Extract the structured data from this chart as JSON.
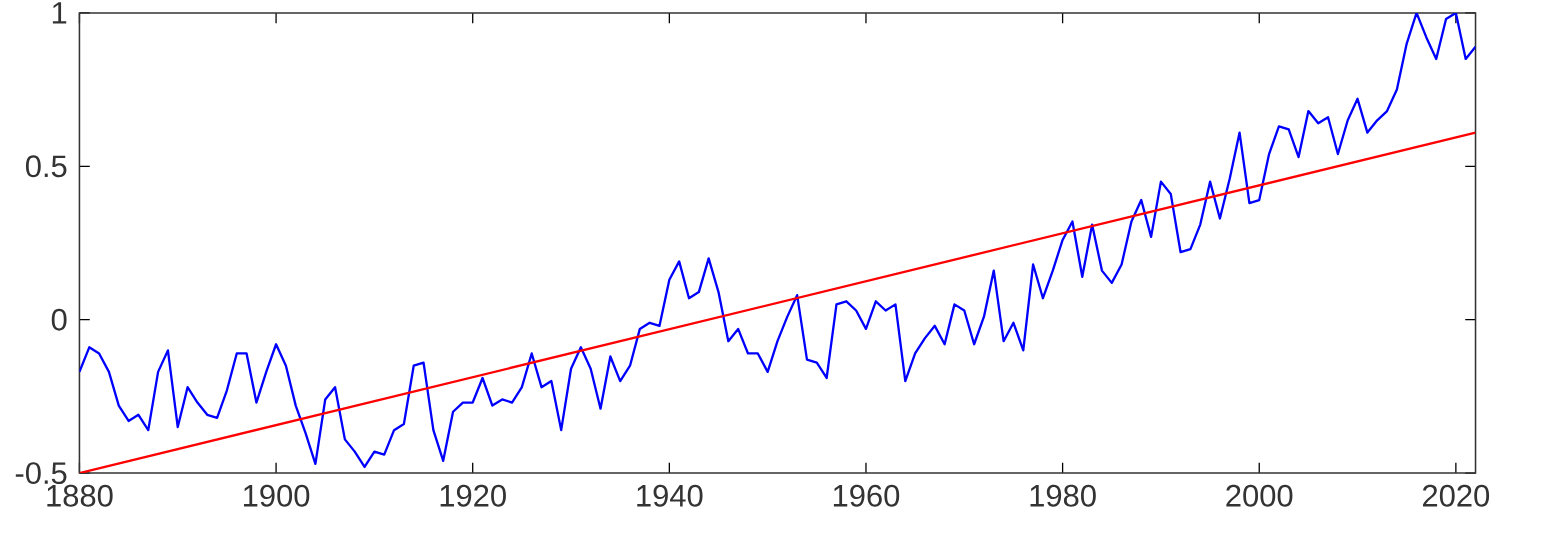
{
  "chart_data": {
    "type": "line",
    "x": [
      1880,
      1881,
      1882,
      1883,
      1884,
      1885,
      1886,
      1887,
      1888,
      1889,
      1890,
      1891,
      1892,
      1893,
      1894,
      1895,
      1896,
      1897,
      1898,
      1899,
      1900,
      1901,
      1902,
      1903,
      1904,
      1905,
      1906,
      1907,
      1908,
      1909,
      1910,
      1911,
      1912,
      1913,
      1914,
      1915,
      1916,
      1917,
      1918,
      1919,
      1920,
      1921,
      1922,
      1923,
      1924,
      1925,
      1926,
      1927,
      1928,
      1929,
      1930,
      1931,
      1932,
      1933,
      1934,
      1935,
      1936,
      1937,
      1938,
      1939,
      1940,
      1941,
      1942,
      1943,
      1944,
      1945,
      1946,
      1947,
      1948,
      1949,
      1950,
      1951,
      1952,
      1953,
      1954,
      1955,
      1956,
      1957,
      1958,
      1959,
      1960,
      1961,
      1962,
      1963,
      1964,
      1965,
      1966,
      1967,
      1968,
      1969,
      1970,
      1971,
      1972,
      1973,
      1974,
      1975,
      1976,
      1977,
      1978,
      1979,
      1980,
      1981,
      1982,
      1983,
      1984,
      1985,
      1986,
      1987,
      1988,
      1989,
      1990,
      1991,
      1992,
      1993,
      1994,
      1995,
      1996,
      1997,
      1998,
      1999,
      2000,
      2001,
      2002,
      2003,
      2004,
      2005,
      2006,
      2007,
      2008,
      2009,
      2010,
      2011,
      2012,
      2013,
      2014,
      2015,
      2016,
      2017,
      2018,
      2019,
      2020,
      2021,
      2022
    ],
    "series": [
      {
        "color": "#0000ff",
        "values": [
          -0.17,
          -0.09,
          -0.11,
          -0.17,
          -0.28,
          -0.33,
          -0.31,
          -0.36,
          -0.17,
          -0.1,
          -0.35,
          -0.22,
          -0.27,
          -0.31,
          -0.32,
          -0.23,
          -0.11,
          -0.11,
          -0.27,
          -0.17,
          -0.08,
          -0.15,
          -0.28,
          -0.37,
          -0.47,
          -0.26,
          -0.22,
          -0.39,
          -0.43,
          -0.48,
          -0.43,
          -0.44,
          -0.36,
          -0.34,
          -0.15,
          -0.14,
          -0.36,
          -0.46,
          -0.3,
          -0.27,
          -0.27,
          -0.19,
          -0.28,
          -0.26,
          -0.27,
          -0.22,
          -0.11,
          -0.22,
          -0.2,
          -0.36,
          -0.16,
          -0.09,
          -0.16,
          -0.29,
          -0.12,
          -0.2,
          -0.15,
          -0.03,
          -0.01,
          -0.02,
          0.13,
          0.19,
          0.07,
          0.09,
          0.2,
          0.09,
          -0.07,
          -0.03,
          -0.11,
          -0.11,
          -0.17,
          -0.07,
          0.01,
          0.08,
          -0.13,
          -0.14,
          -0.19,
          0.05,
          0.06,
          0.03,
          -0.03,
          0.06,
          0.03,
          0.05,
          -0.2,
          -0.11,
          -0.06,
          -0.02,
          -0.08,
          0.05,
          0.03,
          -0.08,
          0.01,
          0.16,
          -0.07,
          -0.01,
          -0.1,
          0.18,
          0.07,
          0.16,
          0.26,
          0.32,
          0.14,
          0.31,
          0.16,
          0.12,
          0.18,
          0.32,
          0.39,
          0.27,
          0.45,
          0.41,
          0.22,
          0.23,
          0.31,
          0.45,
          0.33,
          0.46,
          0.61,
          0.38,
          0.39,
          0.54,
          0.63,
          0.62,
          0.53,
          0.68,
          0.64,
          0.66,
          0.54,
          0.65,
          0.72,
          0.61,
          0.65,
          0.68,
          0.75,
          0.9,
          1.0,
          0.92,
          0.85,
          0.98,
          1.0,
          0.85,
          0.89
        ]
      },
      {
        "type": "line",
        "color": "#ff0000",
        "x": [
          1880,
          2022
        ],
        "values": [
          -0.5,
          0.61
        ]
      }
    ],
    "xlim": [
      1880,
      2022
    ],
    "ylim": [
      -0.5,
      1
    ],
    "xticks": [
      1880,
      1900,
      1920,
      1940,
      1960,
      1980,
      2000,
      2020
    ],
    "yticks": [
      -0.5,
      0,
      0.5,
      1
    ]
  }
}
